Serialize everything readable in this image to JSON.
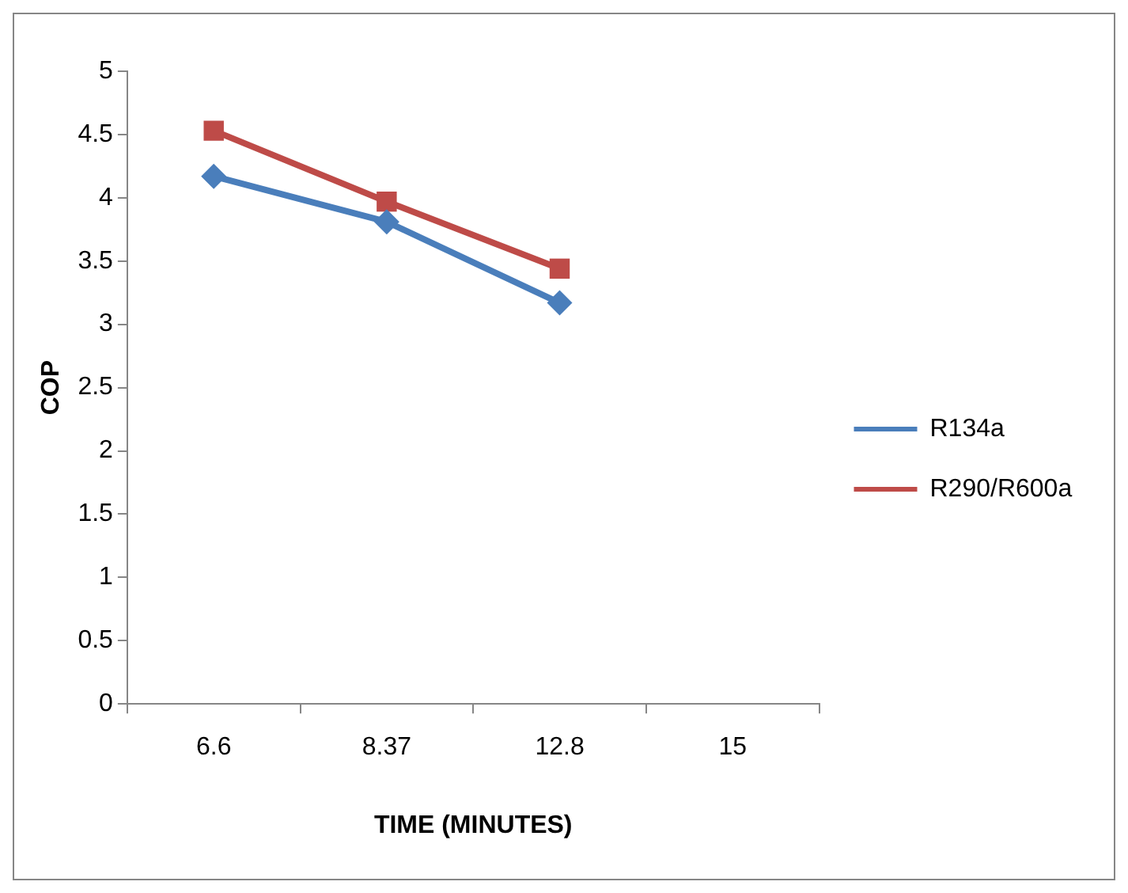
{
  "chart_data": {
    "type": "line",
    "xlabel": "TIME (MINUTES)",
    "ylabel": "COP",
    "categories": [
      "6.6",
      "8.37",
      "12.8",
      "15"
    ],
    "series": [
      {
        "name": "R134a",
        "color": "#4a7ebb",
        "marker": "diamond",
        "values": [
          4.17,
          3.81,
          3.17,
          null
        ]
      },
      {
        "name": "R290/R600a",
        "color": "#be4b48",
        "marker": "square",
        "values": [
          4.53,
          3.97,
          3.44,
          null
        ]
      }
    ],
    "ylim": [
      0,
      5
    ],
    "yticks": [
      0,
      0.5,
      1,
      1.5,
      2,
      2.5,
      3,
      3.5,
      4,
      4.5,
      5
    ],
    "grid": false,
    "legend": "right",
    "line_style": "solid"
  }
}
